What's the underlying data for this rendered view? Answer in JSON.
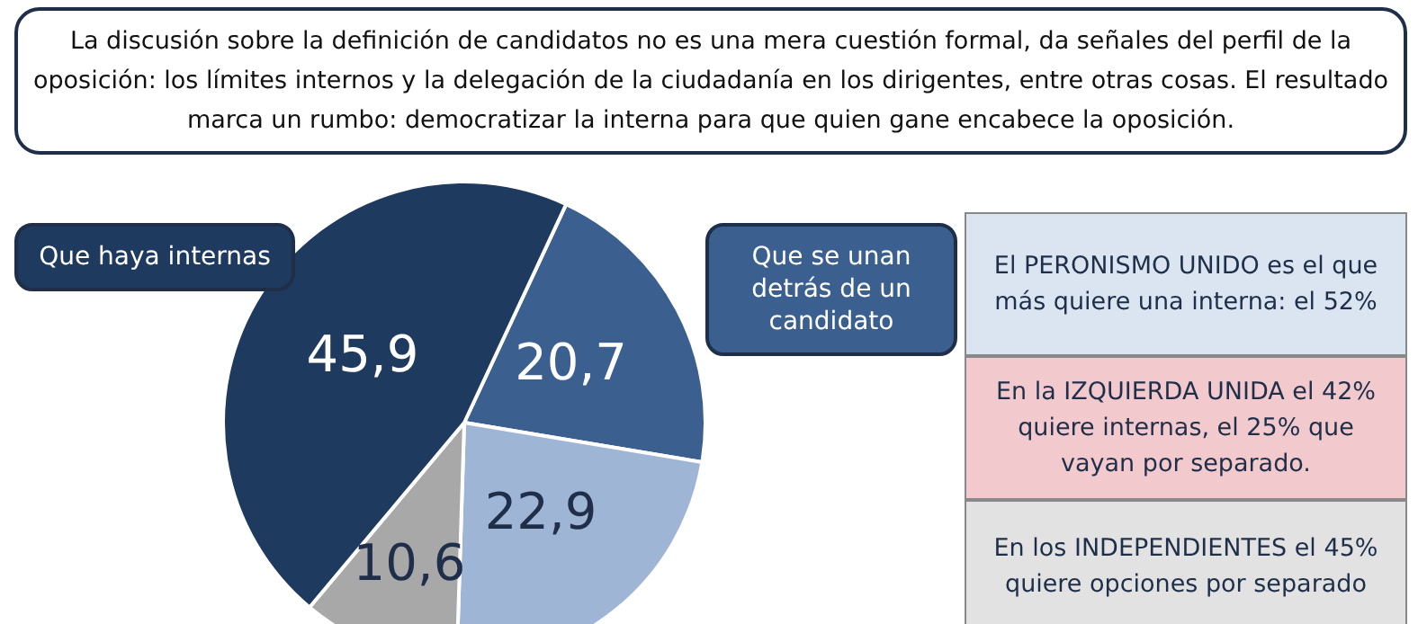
{
  "chart_data": {
    "type": "pie",
    "title": "La discusión sobre la definición de candidatos no es una mera cuestión formal, da señales del perfil de la oposición: los límites internos y la delegación de la ciudadanía en los dirigentes, entre otras cosas. El resultado marca un rumbo: democratizar la interna para que quien gane encabece la oposición.",
    "categories": [
      "Que se unan detrás de un candidato",
      null,
      null,
      "Que haya internas"
    ],
    "values": [
      20.7,
      22.9,
      10.6,
      45.9
    ],
    "colors": [
      "#3b5f8f",
      "#9fb5d6",
      "#a8a8a8",
      "#1f3a5f"
    ],
    "value_labels": [
      "20,7",
      "22,9",
      "10,6",
      "45,9"
    ],
    "annotations": [
      "El PERONISMO UNIDO es el que más quiere una interna: el 52%",
      "En la IZQUIERDA UNIDA el 42% quiere internas, el 25% que vayan por separado.",
      "En los INDEPENDIENTES el 45% quiere opciones por separado"
    ],
    "legend": false
  }
}
